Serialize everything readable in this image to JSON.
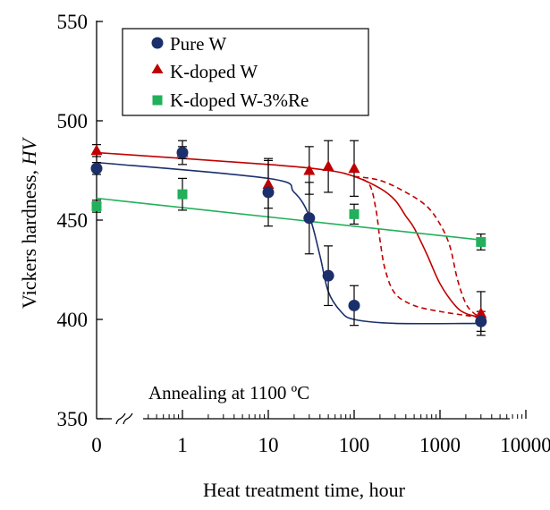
{
  "chart_data": {
    "type": "scatter",
    "title": "",
    "xlabel": "Heat treatment  time,  hour",
    "ylabel_text": "Vickers hardness,",
    "ylabel_symbol": "HV",
    "x_scale": "log (with broken axis: 0 shown left of the break)",
    "xlim": [
      0.1,
      10000
    ],
    "ylim": [
      350,
      550
    ],
    "x_tick_labels": [
      "0",
      "1",
      "10",
      "100",
      "1000",
      "10000"
    ],
    "y_tick_labels": [
      "350",
      "400",
      "450",
      "500",
      "550"
    ],
    "annotation": "Annealing  at 1100 ºC",
    "legend_position": "top-left",
    "grid": false,
    "series": [
      {
        "name": "Pure W",
        "marker": "circle",
        "color": "#1a2f6b",
        "points": [
          {
            "x": 0,
            "y": 476,
            "err": 3
          },
          {
            "x": 1,
            "y": 484,
            "err": 3
          },
          {
            "x": 10,
            "y": 464,
            "err": 17
          },
          {
            "x": 30,
            "y": 451,
            "err": 18
          },
          {
            "x": 50,
            "y": 422,
            "err": 15
          },
          {
            "x": 100,
            "y": 407,
            "err": 10
          },
          {
            "x": 3000,
            "y": 399,
            "err": 5
          }
        ],
        "fit": [
          [
            0,
            479
          ],
          [
            10,
            471
          ],
          [
            20,
            464
          ],
          [
            30,
            452
          ],
          [
            40,
            432
          ],
          [
            50,
            414
          ],
          [
            70,
            404
          ],
          [
            100,
            400
          ],
          [
            300,
            398
          ],
          [
            3000,
            398
          ]
        ]
      },
      {
        "name": "K-doped W",
        "marker": "triangle",
        "color": "#c00000",
        "points": [
          {
            "x": 0,
            "y": 485,
            "err": 3
          },
          {
            "x": 1,
            "y": 484,
            "err": 6
          },
          {
            "x": 10,
            "y": 468,
            "err": 12
          },
          {
            "x": 30,
            "y": 475,
            "err": 12
          },
          {
            "x": 50,
            "y": 477,
            "err": 13
          },
          {
            "x": 100,
            "y": 476,
            "err": 14
          },
          {
            "x": 3000,
            "y": 403,
            "err": 11
          }
        ],
        "fit": [
          [
            0,
            484
          ],
          [
            10,
            478
          ],
          [
            50,
            475
          ],
          [
            100,
            472
          ],
          [
            200,
            466
          ],
          [
            300,
            460
          ],
          [
            400,
            452
          ],
          [
            500,
            446
          ],
          [
            700,
            433
          ],
          [
            1000,
            418
          ],
          [
            1500,
            407
          ],
          [
            2000,
            403
          ],
          [
            3000,
            401
          ]
        ],
        "fit_dashed_lower": [
          [
            100,
            472
          ],
          [
            150,
            468
          ],
          [
            180,
            455
          ],
          [
            200,
            440
          ],
          [
            230,
            425
          ],
          [
            300,
            413
          ],
          [
            500,
            407
          ],
          [
            1000,
            404
          ],
          [
            2000,
            402
          ],
          [
            3000,
            401
          ]
        ],
        "fit_dashed_upper": [
          [
            100,
            472
          ],
          [
            200,
            470
          ],
          [
            400,
            464
          ],
          [
            700,
            457
          ],
          [
            1000,
            448
          ],
          [
            1300,
            437
          ],
          [
            1600,
            420
          ],
          [
            2000,
            408
          ],
          [
            2500,
            403
          ],
          [
            3000,
            401
          ]
        ]
      },
      {
        "name": "K-doped W-3%Re",
        "marker": "square",
        "color": "#22b05a",
        "points": [
          {
            "x": 0,
            "y": 457,
            "err": 3
          },
          {
            "x": 1,
            "y": 463,
            "err": 8
          },
          {
            "x": 100,
            "y": 453,
            "err": 5
          },
          {
            "x": 3000,
            "y": 439,
            "err": 4
          }
        ],
        "fit": [
          [
            0,
            461
          ],
          [
            3000,
            440
          ]
        ]
      }
    ]
  }
}
